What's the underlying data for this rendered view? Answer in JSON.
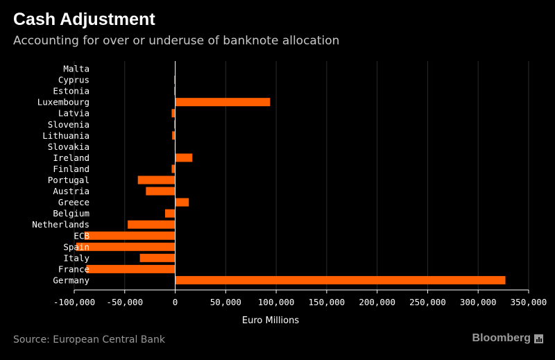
{
  "header": {
    "title": "Cash Adjustment",
    "subtitle": "Accounting for over or underuse of banknote allocation"
  },
  "footer": {
    "source": "Source: European Central Bank",
    "brand": "Bloomberg",
    "brand_icon": "bar-chart-icon"
  },
  "colors": {
    "background": "#000000",
    "bar": "#ff5f00",
    "grid": "#2b2b2b",
    "axis": "#ffffff"
  },
  "chart_data": {
    "type": "bar",
    "orientation": "horizontal",
    "categories": [
      "Malta",
      "Cyprus",
      "Estonia",
      "Luxembourg",
      "Latvia",
      "Slovenia",
      "Lithuania",
      "Slovakia",
      "Ireland",
      "Finland",
      "Portugal",
      "Austria",
      "Greece",
      "Belgium",
      "Netherlands",
      "ECB",
      "Spain",
      "Italy",
      "France",
      "Germany"
    ],
    "values": [
      0,
      -1000,
      -1000,
      94000,
      -3500,
      -1000,
      -3000,
      -500,
      17000,
      -3500,
      -37000,
      -29000,
      13500,
      -10000,
      -47000,
      -90000,
      -98000,
      -35000,
      -88000,
      327000
    ],
    "xlabel": "Euro Millions",
    "ylabel": "",
    "xlim": [
      -100000,
      350000
    ],
    "xticks": [
      -100000,
      -50000,
      0,
      50000,
      100000,
      150000,
      200000,
      250000,
      300000,
      350000
    ],
    "xtick_labels": [
      "-100,000",
      "-50,000",
      "0",
      "50,000",
      "100,000",
      "150,000",
      "200,000",
      "250,000",
      "300,000",
      "350,000"
    ],
    "grid": true,
    "legend": "none"
  }
}
